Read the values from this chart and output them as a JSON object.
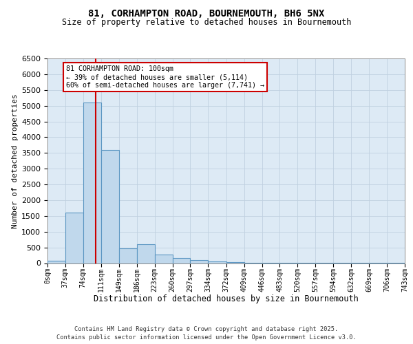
{
  "title1": "81, CORHAMPTON ROAD, BOURNEMOUTH, BH6 5NX",
  "title2": "Size of property relative to detached houses in Bournemouth",
  "xlabel": "Distribution of detached houses by size in Bournemouth",
  "ylabel": "Number of detached properties",
  "bin_edges": [
    0,
    37,
    74,
    111,
    149,
    186,
    223,
    260,
    297,
    334,
    372,
    409,
    446,
    483,
    520,
    557,
    594,
    632,
    669,
    706,
    743
  ],
  "bar_values": [
    70,
    1600,
    5100,
    3600,
    480,
    600,
    270,
    160,
    100,
    50,
    25,
    10,
    5,
    5,
    5,
    5,
    5,
    5,
    5,
    5
  ],
  "bar_color": "#c0d8ec",
  "bar_edge_color": "#5b96c2",
  "property_size": 100,
  "property_line_color": "#cc0000",
  "annotation_line1": "81 CORHAMPTON ROAD: 100sqm",
  "annotation_line2": "← 39% of detached houses are smaller (5,114)",
  "annotation_line3": "60% of semi-detached houses are larger (7,741) →",
  "annotation_box_edgecolor": "#cc0000",
  "ylim_max": 6500,
  "ytick_step": 500,
  "grid_color": "#c0d0e0",
  "plot_bg_color": "#ddeaf5",
  "footnote1": "Contains HM Land Registry data © Crown copyright and database right 2025.",
  "footnote2": "Contains public sector information licensed under the Open Government Licence v3.0."
}
